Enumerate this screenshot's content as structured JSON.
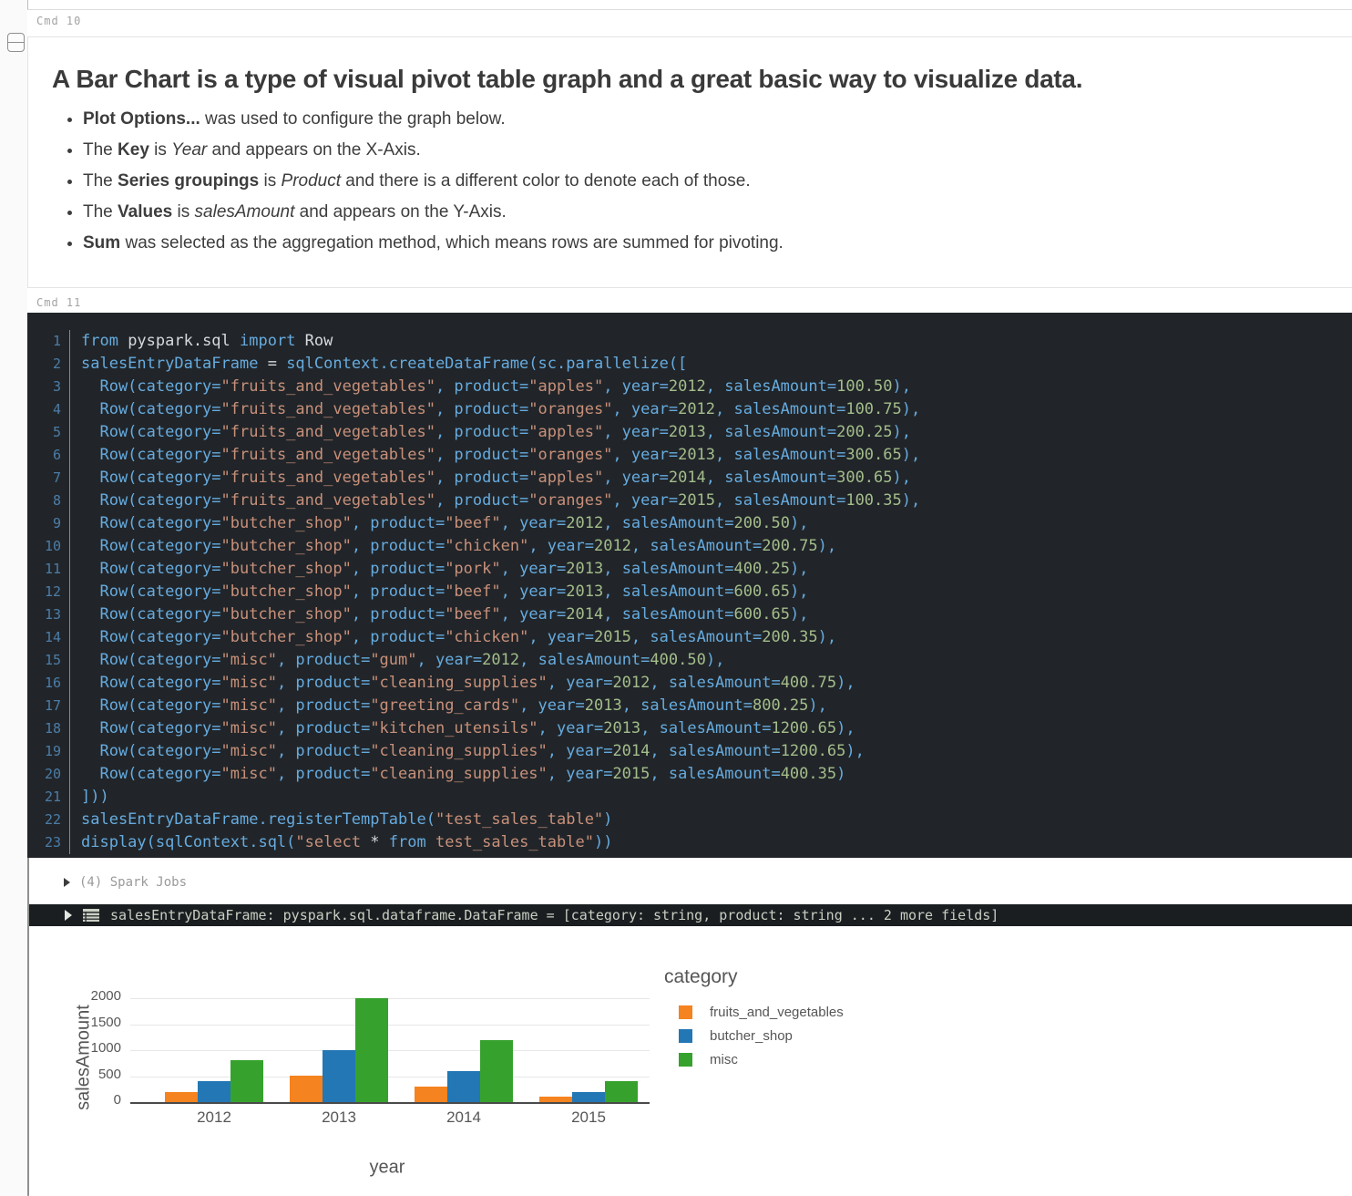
{
  "labels": {
    "cmd10": "Cmd 10",
    "cmd11": "Cmd 11"
  },
  "markdown_cell": {
    "heading": "A Bar Chart is a type of visual pivot table graph and a great basic way to visualize data.",
    "bullets": [
      [
        {
          "t": "Plot Options...",
          "b": true
        },
        {
          "t": " was used to configure the graph below."
        }
      ],
      [
        {
          "t": "The "
        },
        {
          "t": "Key",
          "b": true
        },
        {
          "t": " is "
        },
        {
          "t": "Year",
          "i": true
        },
        {
          "t": " and appears on the X-Axis."
        }
      ],
      [
        {
          "t": "The "
        },
        {
          "t": "Series groupings",
          "b": true
        },
        {
          "t": " is "
        },
        {
          "t": "Product",
          "i": true
        },
        {
          "t": " and there is a different color to denote each of those."
        }
      ],
      [
        {
          "t": "The "
        },
        {
          "t": "Values",
          "b": true
        },
        {
          "t": " is "
        },
        {
          "t": "salesAmount",
          "i": true
        },
        {
          "t": " and appears on the Y-Axis."
        }
      ],
      [
        {
          "t": "Sum",
          "b": true
        },
        {
          "t": " was selected as the aggregation method, which means rows are summed for pivoting."
        }
      ]
    ]
  },
  "code_cell": {
    "lines_head": [
      [
        {
          "t": "from ",
          "c": "c"
        },
        {
          "t": "pyspark.sql ",
          "c": "w"
        },
        {
          "t": "import ",
          "c": "c"
        },
        {
          "t": "Row",
          "c": "w"
        }
      ],
      [
        {
          "t": "salesEntryDataFrame ",
          "c": "c"
        },
        {
          "t": "= ",
          "c": "w"
        },
        {
          "t": "sqlContext.createDataFrame(sc.parallelize([",
          "c": "c"
        }
      ]
    ],
    "rows": [
      {
        "category": "fruits_and_vegetables",
        "product": "apples",
        "year": "2012",
        "amount": "100.50"
      },
      {
        "category": "fruits_and_vegetables",
        "product": "oranges",
        "year": "2012",
        "amount": "100.75"
      },
      {
        "category": "fruits_and_vegetables",
        "product": "apples",
        "year": "2013",
        "amount": "200.25"
      },
      {
        "category": "fruits_and_vegetables",
        "product": "oranges",
        "year": "2013",
        "amount": "300.65"
      },
      {
        "category": "fruits_and_vegetables",
        "product": "apples",
        "year": "2014",
        "amount": "300.65"
      },
      {
        "category": "fruits_and_vegetables",
        "product": "oranges",
        "year": "2015",
        "amount": "100.35"
      },
      {
        "category": "butcher_shop",
        "product": "beef",
        "year": "2012",
        "amount": "200.50"
      },
      {
        "category": "butcher_shop",
        "product": "chicken",
        "year": "2012",
        "amount": "200.75"
      },
      {
        "category": "butcher_shop",
        "product": "pork",
        "year": "2013",
        "amount": "400.25"
      },
      {
        "category": "butcher_shop",
        "product": "beef",
        "year": "2013",
        "amount": "600.65"
      },
      {
        "category": "butcher_shop",
        "product": "beef",
        "year": "2014",
        "amount": "600.65"
      },
      {
        "category": "butcher_shop",
        "product": "chicken",
        "year": "2015",
        "amount": "200.35"
      },
      {
        "category": "misc",
        "product": "gum",
        "year": "2012",
        "amount": "400.50"
      },
      {
        "category": "misc",
        "product": "cleaning_supplies",
        "year": "2012",
        "amount": "400.75"
      },
      {
        "category": "misc",
        "product": "greeting_cards",
        "year": "2013",
        "amount": "800.25"
      },
      {
        "category": "misc",
        "product": "kitchen_utensils",
        "year": "2013",
        "amount": "1200.65"
      },
      {
        "category": "misc",
        "product": "cleaning_supplies",
        "year": "2014",
        "amount": "1200.65"
      },
      {
        "category": "misc",
        "product": "cleaning_supplies",
        "year": "2015",
        "amount": "400.35"
      }
    ],
    "lines_tail": [
      [
        {
          "t": "]))",
          "c": "c"
        }
      ],
      [
        {
          "t": "salesEntryDataFrame.registerTempTable(",
          "c": "c"
        },
        {
          "t": "\"test_sales_table\"",
          "c": "s"
        },
        {
          "t": ")",
          "c": "c"
        }
      ],
      [
        {
          "t": "display(sqlContext.sql(",
          "c": "c"
        },
        {
          "t": "\"select ",
          "c": "s"
        },
        {
          "t": "* ",
          "c": "w"
        },
        {
          "t": "from ",
          "c": "c"
        },
        {
          "t": "test_sales_table\"",
          "c": "s"
        },
        {
          "t": "))",
          "c": "c"
        }
      ]
    ]
  },
  "spark_jobs": {
    "label": "(4) Spark Jobs"
  },
  "result_bar": {
    "text": "salesEntryDataFrame: pyspark.sql.dataframe.DataFrame = [category: string, product: string ... 2 more fields]"
  },
  "chart_data": {
    "type": "bar",
    "title": "",
    "xlabel": "year",
    "ylabel": "salesAmount",
    "categories": [
      "2012",
      "2013",
      "2014",
      "2015"
    ],
    "series": [
      {
        "name": "fruits_and_vegetables",
        "color": "#f5831f",
        "values": [
          201.25,
          500.9,
          300.65,
          100.35
        ]
      },
      {
        "name": "butcher_shop",
        "color": "#2277b4",
        "values": [
          401.25,
          1000.9,
          600.65,
          200.35
        ]
      },
      {
        "name": "misc",
        "color": "#36a22d",
        "values": [
          801.25,
          2000.9,
          1200.65,
          400.35
        ]
      }
    ],
    "yticks": [
      0,
      500,
      1000,
      1500,
      2000
    ],
    "ylim": [
      0,
      2050
    ],
    "grid": true,
    "legend_title": "category",
    "legend_position": "right",
    "aggregation": "sum"
  }
}
